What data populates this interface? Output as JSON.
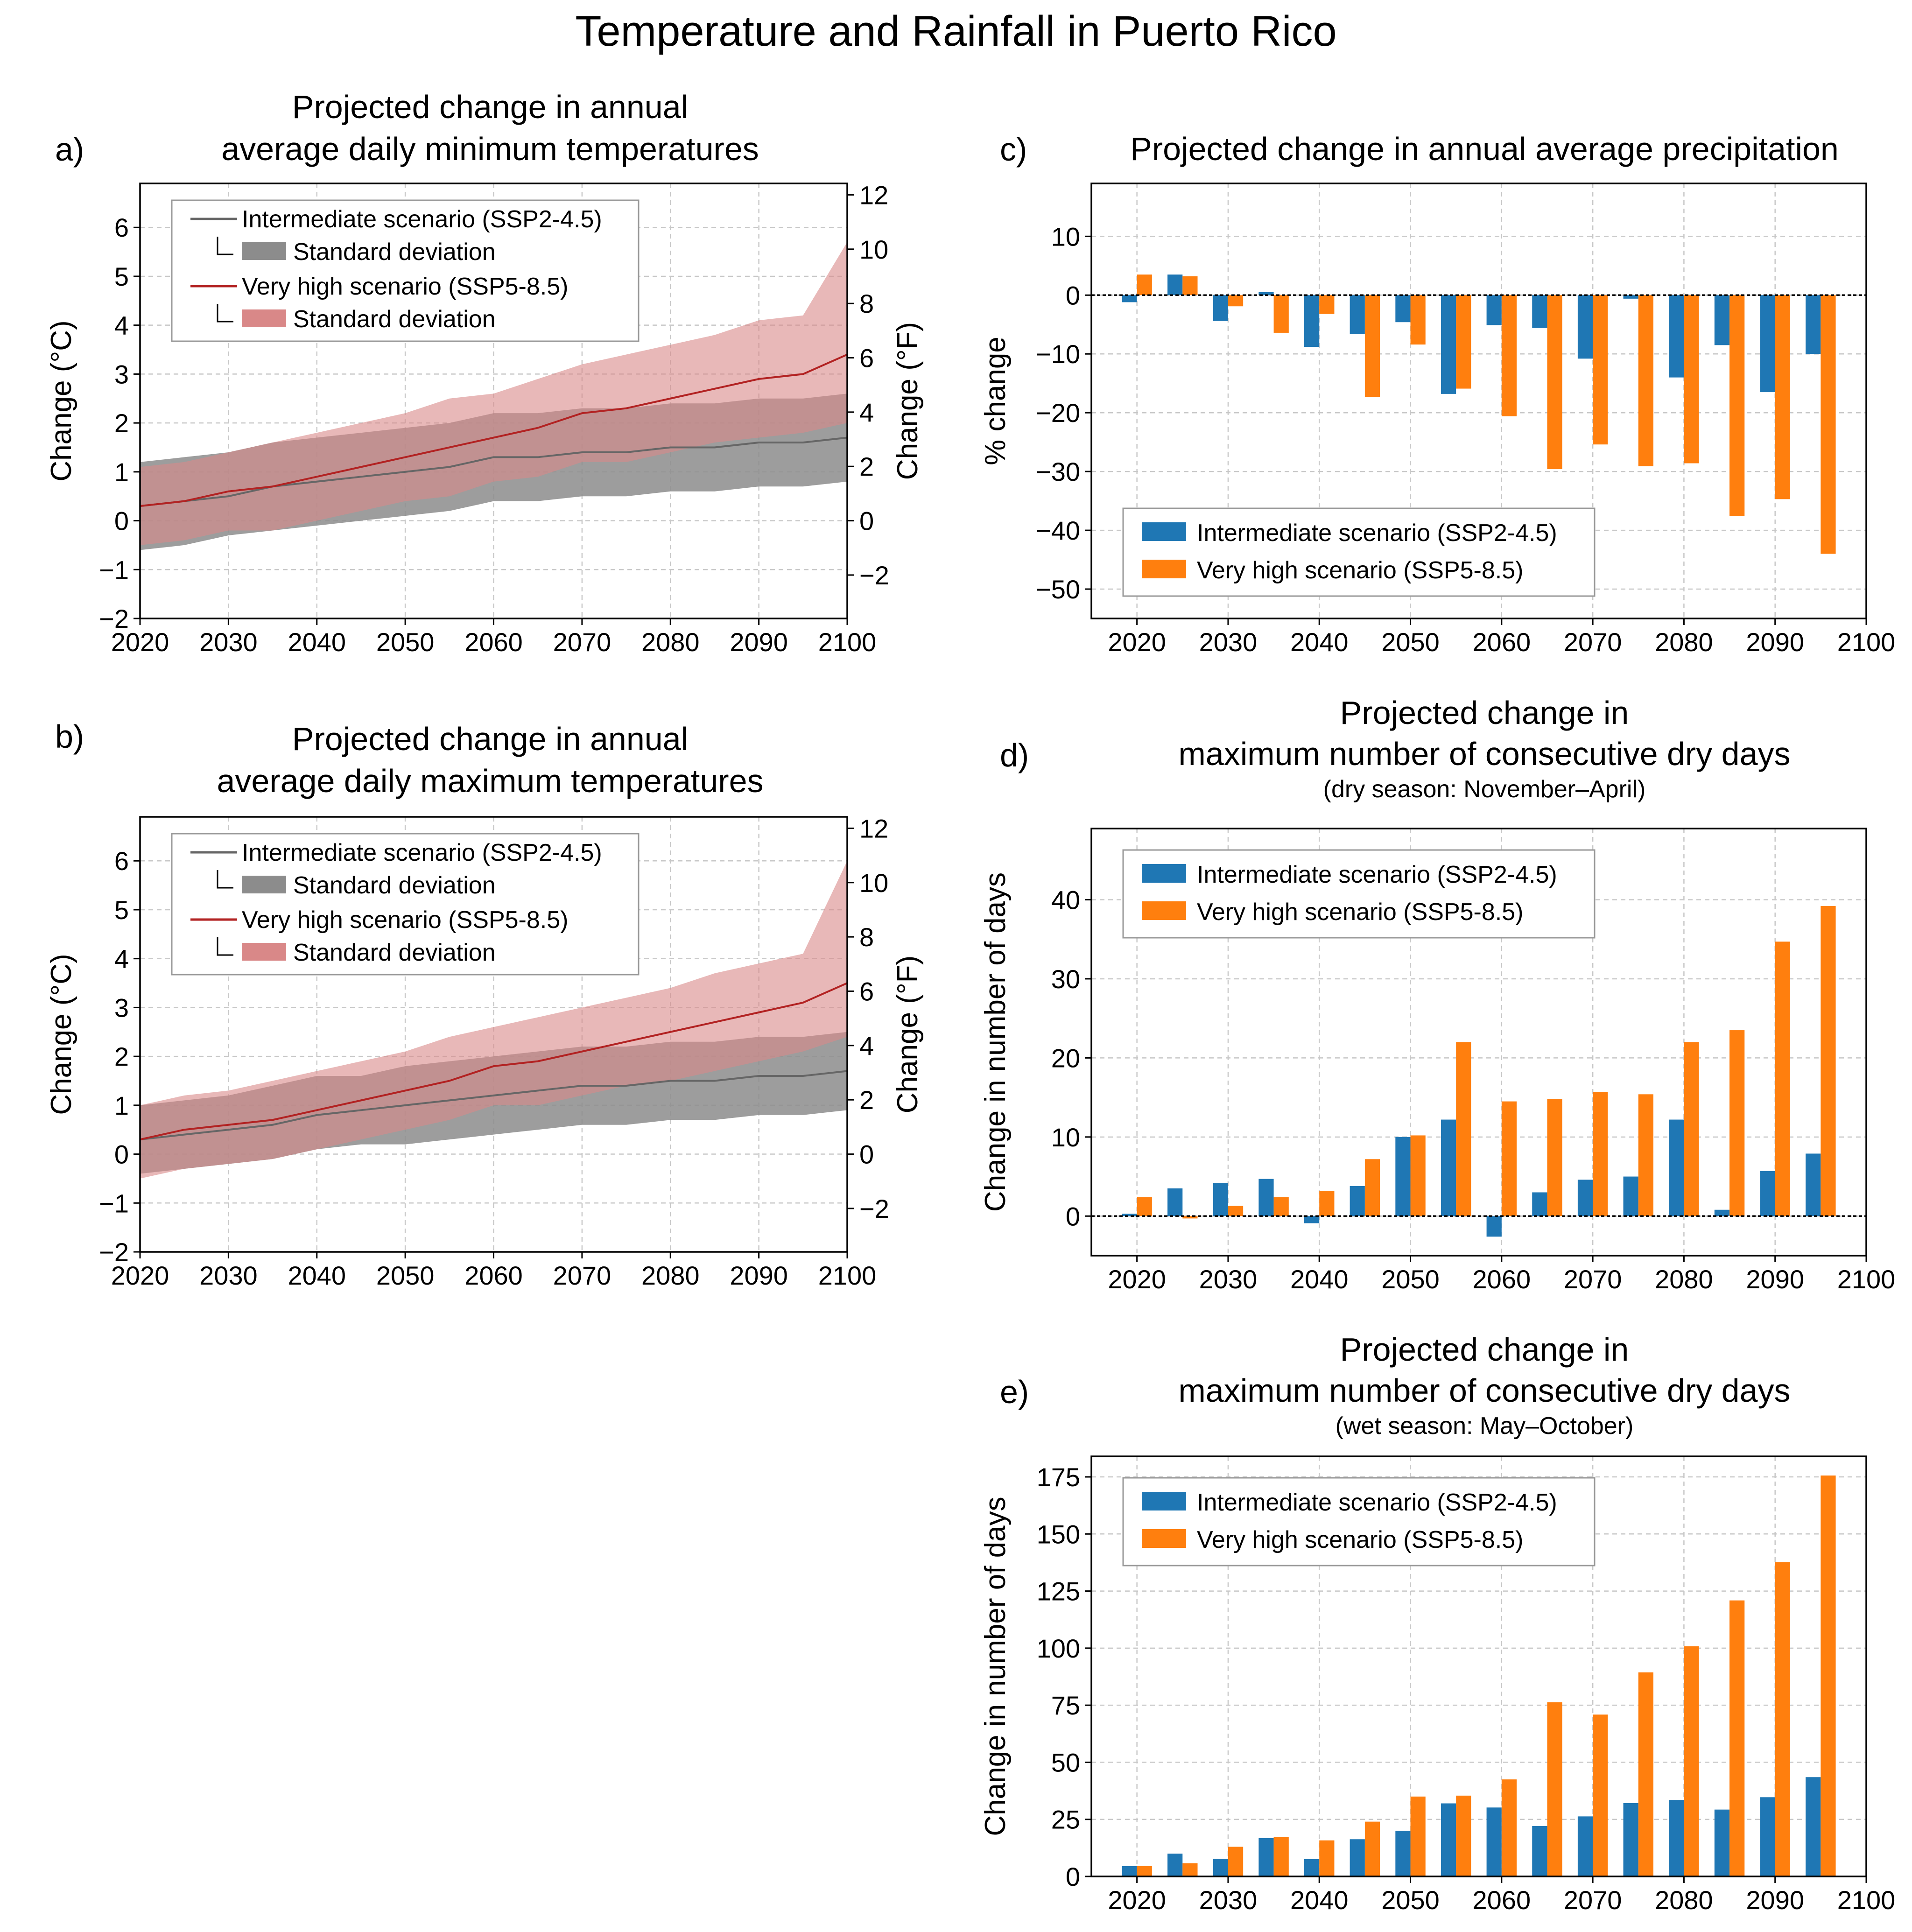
{
  "title": "Temperature and Rainfall in Puerto Rico",
  "colors": {
    "intermediate_line": "#666666",
    "intermediate_band": "#8c8c8c",
    "very_high_line": "#b22222",
    "very_high_band": "#d98888",
    "bar_intermediate": "#1f77b4",
    "bar_very_high": "#ff7f0e",
    "grid": "#c8c8c8"
  },
  "panels": {
    "a": {
      "label": "a)",
      "title_line1": "Projected change in annual",
      "title_line2": "average daily minimum temperatures"
    },
    "b": {
      "label": "b)",
      "title_line1": "Projected change in annual",
      "title_line2": "average daily maximum temperatures"
    },
    "c": {
      "label": "c)",
      "title_line1": "Projected change in annual average precipitation"
    },
    "d": {
      "label": "d)",
      "title_line1": "Projected change in",
      "title_line2": "maximum number of consecutive dry days",
      "subtitle": "(dry season: November–April)"
    },
    "e": {
      "label": "e)",
      "title_line1": "Projected change in",
      "title_line2": "maximum number of consecutive dry days",
      "subtitle": "(wet season: May–October)"
    }
  },
  "chart_data": [
    {
      "id": "a",
      "type": "line",
      "title": "Projected change in annual average daily minimum temperatures",
      "xlabel": "",
      "ylabel": "Change (°C)",
      "ylabel_right": "Change (°F)",
      "xlim": [
        2020,
        2100
      ],
      "ylim": [
        -2,
        6.9
      ],
      "ylim_right": [
        -3.6,
        12.42
      ],
      "xticks": [
        2020,
        2030,
        2040,
        2050,
        2060,
        2070,
        2080,
        2090,
        2100
      ],
      "yticks": [
        -2,
        -1,
        0,
        1,
        2,
        3,
        4,
        5,
        6
      ],
      "yticks_right": [
        -2,
        0,
        2,
        4,
        6,
        8,
        10,
        12
      ],
      "grid": true,
      "legend_position": "upper-left",
      "legend": [
        "Intermediate scenario (SSP2-4.5)",
        "Standard deviation",
        "Very high scenario (SSP5-8.5)",
        "Standard deviation"
      ],
      "x": [
        2020,
        2025,
        2030,
        2035,
        2040,
        2045,
        2050,
        2055,
        2060,
        2065,
        2070,
        2075,
        2080,
        2085,
        2090,
        2095,
        2100
      ],
      "series": [
        {
          "name": "Intermediate scenario (SSP2-4.5)",
          "values": [
            0.3,
            0.4,
            0.5,
            0.7,
            0.8,
            0.9,
            1.0,
            1.1,
            1.3,
            1.3,
            1.4,
            1.4,
            1.5,
            1.5,
            1.6,
            1.6,
            1.7
          ],
          "band_lower": [
            -0.6,
            -0.5,
            -0.3,
            -0.2,
            -0.1,
            0.0,
            0.1,
            0.2,
            0.4,
            0.4,
            0.5,
            0.5,
            0.6,
            0.6,
            0.7,
            0.7,
            0.8
          ],
          "band_upper": [
            1.2,
            1.3,
            1.4,
            1.6,
            1.7,
            1.8,
            1.9,
            2.0,
            2.2,
            2.2,
            2.3,
            2.3,
            2.4,
            2.4,
            2.5,
            2.5,
            2.6
          ]
        },
        {
          "name": "Very high scenario (SSP5-8.5)",
          "values": [
            0.3,
            0.4,
            0.6,
            0.7,
            0.9,
            1.1,
            1.3,
            1.5,
            1.7,
            1.9,
            2.2,
            2.3,
            2.5,
            2.7,
            2.9,
            3.0,
            3.4
          ],
          "band_lower": [
            -0.5,
            -0.4,
            -0.2,
            -0.2,
            0.0,
            0.2,
            0.4,
            0.5,
            0.8,
            0.9,
            1.2,
            1.2,
            1.4,
            1.6,
            1.7,
            1.8,
            2.0
          ],
          "band_upper": [
            1.1,
            1.2,
            1.4,
            1.6,
            1.8,
            2.0,
            2.2,
            2.5,
            2.6,
            2.9,
            3.2,
            3.4,
            3.6,
            3.8,
            4.1,
            4.2,
            5.7
          ]
        }
      ]
    },
    {
      "id": "b",
      "type": "line",
      "title": "Projected change in annual average daily maximum temperatures",
      "xlabel": "",
      "ylabel": "Change (°C)",
      "ylabel_right": "Change (°F)",
      "xlim": [
        2020,
        2100
      ],
      "ylim": [
        -2,
        6.9
      ],
      "ylim_right": [
        -3.6,
        12.42
      ],
      "xticks": [
        2020,
        2030,
        2040,
        2050,
        2060,
        2070,
        2080,
        2090,
        2100
      ],
      "yticks": [
        -2,
        -1,
        0,
        1,
        2,
        3,
        4,
        5,
        6
      ],
      "yticks_right": [
        -2,
        0,
        2,
        4,
        6,
        8,
        10,
        12
      ],
      "grid": true,
      "legend_position": "upper-left",
      "legend": [
        "Intermediate scenario (SSP2-4.5)",
        "Standard deviation",
        "Very high scenario (SSP5-8.5)",
        "Standard deviation"
      ],
      "x": [
        2020,
        2025,
        2030,
        2035,
        2040,
        2045,
        2050,
        2055,
        2060,
        2065,
        2070,
        2075,
        2080,
        2085,
        2090,
        2095,
        2100
      ],
      "series": [
        {
          "name": "Intermediate scenario (SSP2-4.5)",
          "values": [
            0.3,
            0.4,
            0.5,
            0.6,
            0.8,
            0.9,
            1.0,
            1.1,
            1.2,
            1.3,
            1.4,
            1.4,
            1.5,
            1.5,
            1.6,
            1.6,
            1.7
          ],
          "band_lower": [
            -0.4,
            -0.3,
            -0.2,
            -0.1,
            0.1,
            0.2,
            0.2,
            0.3,
            0.4,
            0.5,
            0.6,
            0.6,
            0.7,
            0.7,
            0.8,
            0.8,
            0.9
          ],
          "band_upper": [
            1.0,
            1.1,
            1.2,
            1.4,
            1.6,
            1.6,
            1.8,
            1.9,
            2.0,
            2.1,
            2.2,
            2.2,
            2.3,
            2.3,
            2.4,
            2.4,
            2.5
          ]
        },
        {
          "name": "Very high scenario (SSP5-8.5)",
          "values": [
            0.3,
            0.5,
            0.6,
            0.7,
            0.9,
            1.1,
            1.3,
            1.5,
            1.8,
            1.9,
            2.1,
            2.3,
            2.5,
            2.7,
            2.9,
            3.1,
            3.5
          ],
          "band_lower": [
            -0.5,
            -0.3,
            -0.2,
            -0.1,
            0.1,
            0.3,
            0.5,
            0.7,
            1.0,
            1.0,
            1.2,
            1.4,
            1.5,
            1.7,
            1.9,
            2.1,
            2.4
          ],
          "band_upper": [
            1.0,
            1.2,
            1.3,
            1.5,
            1.7,
            1.9,
            2.1,
            2.4,
            2.6,
            2.8,
            3.0,
            3.2,
            3.4,
            3.7,
            3.9,
            4.1,
            6.0
          ]
        }
      ]
    },
    {
      "id": "c",
      "type": "bar",
      "title": "Projected change in annual average precipitation",
      "xlabel": "",
      "ylabel": "% change",
      "xlim": [
        2015,
        2100
      ],
      "ylim": [
        -55,
        19
      ],
      "xticks": [
        2020,
        2030,
        2040,
        2050,
        2060,
        2070,
        2080,
        2090,
        2100
      ],
      "yticks": [
        -50,
        -40,
        -30,
        -20,
        -10,
        0,
        10
      ],
      "grid": true,
      "zero_line": true,
      "legend_position": "lower-left",
      "categories": [
        2020,
        2025,
        2030,
        2035,
        2040,
        2045,
        2050,
        2055,
        2060,
        2065,
        2070,
        2075,
        2080,
        2085,
        2090,
        2095
      ],
      "series": [
        {
          "name": "Intermediate scenario (SSP2-4.5)",
          "values": [
            -1.2,
            3.5,
            -4.4,
            0.5,
            -8.8,
            -6.6,
            -4.6,
            -16.8,
            -5.1,
            -5.6,
            -10.8,
            -0.6,
            -14.0,
            -8.5,
            -16.5,
            -10.0
          ]
        },
        {
          "name": "Very high scenario (SSP5-8.5)",
          "values": [
            3.5,
            3.2,
            -1.9,
            -6.4,
            -3.2,
            -17.3,
            -8.4,
            -15.9,
            -20.6,
            -29.6,
            -25.4,
            -29.1,
            -28.6,
            -37.6,
            -34.7,
            -44.0
          ]
        }
      ]
    },
    {
      "id": "d",
      "type": "bar",
      "title": "Projected change in maximum number of consecutive dry days",
      "subtitle": "(dry season: November–April)",
      "xlabel": "",
      "ylabel": "Change in number of days",
      "xlim": [
        2015,
        2100
      ],
      "ylim": [
        -5,
        49
      ],
      "xticks": [
        2020,
        2030,
        2040,
        2050,
        2060,
        2070,
        2080,
        2090,
        2100
      ],
      "yticks": [
        0,
        10,
        20,
        30,
        40
      ],
      "grid": true,
      "zero_line": true,
      "legend_position": "upper-left",
      "categories": [
        2020,
        2025,
        2030,
        2035,
        2040,
        2045,
        2050,
        2055,
        2060,
        2065,
        2070,
        2075,
        2080,
        2085,
        2090,
        2095
      ],
      "series": [
        {
          "name": "Intermediate scenario (SSP2-4.5)",
          "values": [
            0.3,
            3.5,
            4.2,
            4.7,
            -0.9,
            3.8,
            10.0,
            12.2,
            -2.6,
            3.0,
            4.6,
            5.0,
            12.2,
            0.8,
            5.7,
            7.9
          ]
        },
        {
          "name": "Very high scenario (SSP5-8.5)",
          "values": [
            2.4,
            -0.3,
            1.3,
            2.4,
            3.2,
            7.2,
            10.2,
            22.0,
            14.5,
            14.8,
            15.7,
            15.4,
            22.0,
            23.5,
            34.7,
            39.2
          ]
        }
      ]
    },
    {
      "id": "e",
      "type": "bar",
      "title": "Projected change in maximum number of consecutive dry days",
      "subtitle": "(wet season: May–October)",
      "xlabel": "",
      "ylabel": "Change in number of days",
      "xlim": [
        2015,
        2100
      ],
      "ylim": [
        0,
        184
      ],
      "xticks": [
        2020,
        2030,
        2040,
        2050,
        2060,
        2070,
        2080,
        2090,
        2100
      ],
      "yticks": [
        0,
        25,
        50,
        75,
        100,
        125,
        150,
        175
      ],
      "grid": true,
      "legend_position": "upper-left",
      "categories": [
        2020,
        2025,
        2030,
        2035,
        2040,
        2045,
        2050,
        2055,
        2060,
        2065,
        2070,
        2075,
        2080,
        2085,
        2090,
        2095
      ],
      "series": [
        {
          "name": "Intermediate scenario (SSP2-4.5)",
          "values": [
            4.5,
            10.0,
            7.7,
            16.8,
            7.6,
            16.3,
            20.0,
            32.0,
            30.2,
            22.1,
            26.3,
            32.1,
            33.5,
            29.3,
            34.7,
            43.5
          ]
        },
        {
          "name": "Very high scenario (SSP5-8.5)",
          "values": [
            4.6,
            5.8,
            13.0,
            17.2,
            15.8,
            24.0,
            35.0,
            35.4,
            42.5,
            76.3,
            70.9,
            89.4,
            100.8,
            120.9,
            137.7,
            175.6
          ]
        }
      ]
    }
  ]
}
